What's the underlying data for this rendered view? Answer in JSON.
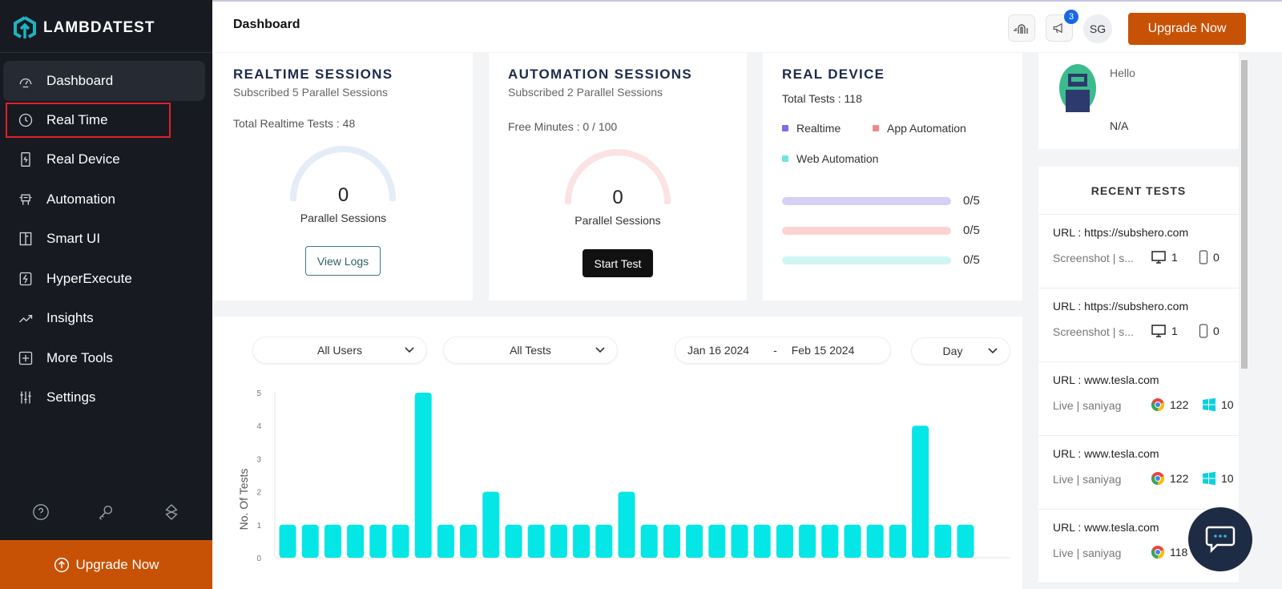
{
  "brand": {
    "name": "LAMBDATEST",
    "accent": "#1fb3c0"
  },
  "sidebar": {
    "items": [
      {
        "label": "Dashboard",
        "icon": "speedometer-icon",
        "active": true
      },
      {
        "label": "Real Time",
        "icon": "clock-icon",
        "highlighted": true
      },
      {
        "label": "Real Device",
        "icon": "device-icon"
      },
      {
        "label": "Automation",
        "icon": "robot-icon"
      },
      {
        "label": "Smart UI",
        "icon": "smart-ui-icon"
      },
      {
        "label": "HyperExecute",
        "icon": "lightning-icon"
      },
      {
        "label": "Insights",
        "icon": "trend-icon"
      },
      {
        "label": "More Tools",
        "icon": "plus-square-icon"
      },
      {
        "label": "Settings",
        "icon": "sliders-icon"
      }
    ],
    "upgrade_label": "Upgrade Now"
  },
  "header": {
    "title": "Dashboard",
    "notifications": "3",
    "avatar": "SG",
    "upgrade_label": "Upgrade Now"
  },
  "realtime": {
    "title": "REALTIME SESSIONS",
    "subtitle": "Subscribed 5 Parallel Sessions",
    "total": "Total Realtime Tests : 48",
    "value": "0",
    "gauge_label": "Parallel Sessions",
    "button": "View Logs"
  },
  "automation": {
    "title": "AUTOMATION SESSIONS",
    "subtitle": "Subscribed 2 Parallel Sessions",
    "minutes": "Free Minutes : 0 / 100",
    "value": "0",
    "gauge_label": "Parallel Sessions",
    "button": "Start Test"
  },
  "real_device": {
    "title": "REAL DEVICE",
    "total": "Total Tests : 118",
    "legend": [
      {
        "label": "Realtime",
        "color": "#7b6fe8"
      },
      {
        "label": "App Automation",
        "color": "#f08a8a"
      },
      {
        "label": "Web Automation",
        "color": "#6ee6dc"
      }
    ],
    "bars": [
      {
        "value": "0/5",
        "progress": 0,
        "color": "#d6d0f5"
      },
      {
        "value": "0/5",
        "progress": 0,
        "color": "#fbd3d3"
      },
      {
        "value": "0/5",
        "progress": 0,
        "color": "#d0f6f3"
      }
    ]
  },
  "profile": {
    "greeting": "Hello",
    "name": "N/A"
  },
  "recent": {
    "title": "RECENT TESTS",
    "items": [
      {
        "url": "URL : https://subshero.com",
        "meta": "Screenshot | s...",
        "a": "1",
        "b": "0",
        "kind": "screenshot"
      },
      {
        "url": "URL : https://subshero.com",
        "meta": "Screenshot | s...",
        "a": "1",
        "b": "0",
        "kind": "screenshot"
      },
      {
        "url": "URL : www.tesla.com",
        "meta": "Live | saniyag",
        "a": "122",
        "b": "10",
        "kind": "live"
      },
      {
        "url": "URL : www.tesla.com",
        "meta": "Live | saniyag",
        "a": "122",
        "b": "10",
        "kind": "live"
      },
      {
        "url": "URL : www.tesla.com",
        "meta": "Live | saniyag",
        "a": "118",
        "b": "",
        "kind": "live"
      }
    ]
  },
  "filters": {
    "users": "All Users",
    "tests": "All Tests",
    "date_from": "Jan 16 2024",
    "date_sep": "-",
    "date_to": "Feb 15 2024",
    "granularity": "Day"
  },
  "chart_data": {
    "type": "bar",
    "ylabel": "No. Of Tests",
    "ylim": [
      0,
      5
    ],
    "yticks": [
      "0",
      "1",
      "2",
      "3",
      "4",
      "5"
    ],
    "values": [
      1,
      1,
      1,
      1,
      1,
      1,
      5,
      1,
      1,
      2,
      1,
      1,
      1,
      1,
      1,
      2,
      1,
      1,
      1,
      1,
      1,
      1,
      1,
      1,
      1,
      1,
      1,
      1,
      4,
      1,
      1
    ],
    "color": "#05e6e6"
  }
}
